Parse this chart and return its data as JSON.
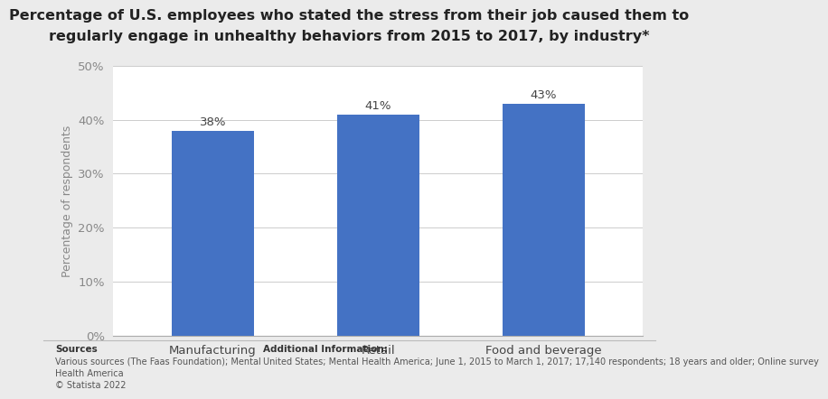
{
  "title_line1": "Percentage of U.S. employees who stated the stress from their job caused them to",
  "title_line2": "regularly engage in unhealthy behaviors from 2015 to 2017, by industry*",
  "categories": [
    "Manufacturing",
    "Retail",
    "Food and beverage"
  ],
  "values": [
    38,
    41,
    43
  ],
  "bar_labels": [
    "38%",
    "41%",
    "43%"
  ],
  "bar_color": "#4472C4",
  "ylabel": "Percentage of respondents",
  "ylim": [
    0,
    50
  ],
  "yticks": [
    0,
    10,
    20,
    30,
    40,
    50
  ],
  "ytick_labels": [
    "0%",
    "10%",
    "20%",
    "30%",
    "40%",
    "50%"
  ],
  "background_color": "#ebebeb",
  "plot_background_color": "#ffffff",
  "title_fontsize": 11.5,
  "label_fontsize": 9.5,
  "tick_fontsize": 9.5,
  "bar_label_fontsize": 9.5,
  "footer_sources_title": "Sources",
  "footer_sources_text": "Various sources (The Faas Foundation); Mental\nHealth America\n© Statista 2022",
  "footer_info_title": "Additional Information:",
  "footer_info_text": "United States; Mental Health America; June 1, 2015 to March 1, 2017; 17,140 respondents; 18 years and older; Online survey"
}
